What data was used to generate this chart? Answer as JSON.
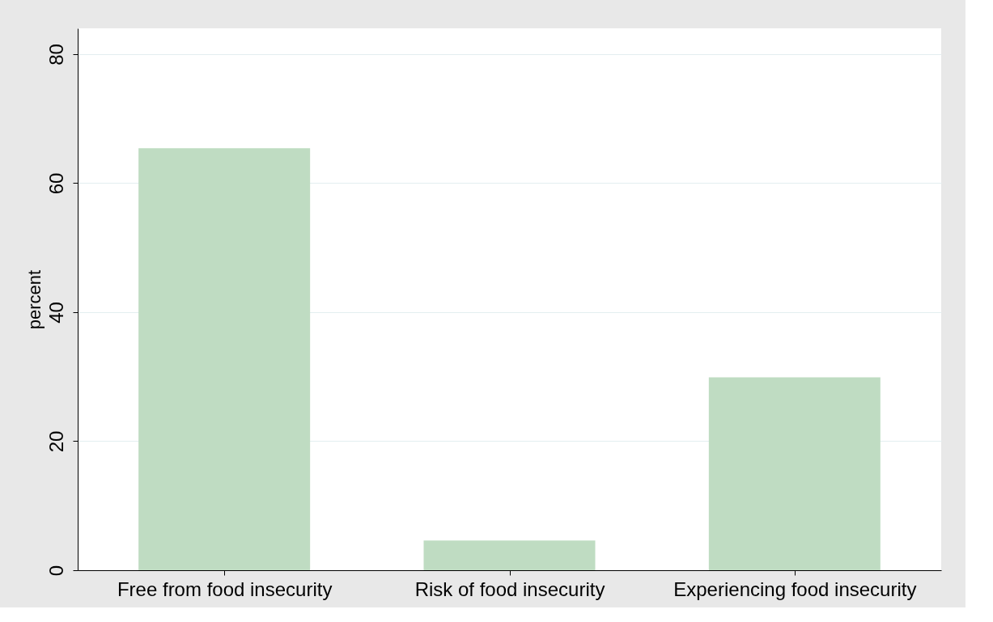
{
  "chart_data": {
    "type": "bar",
    "ylabel": "percent",
    "categories": [
      "Free from food insecurity",
      "Risk of food insecurity",
      "Experiencing food insecurity"
    ],
    "values": [
      65.4,
      4.6,
      29.9
    ],
    "color": "#bfdcc2",
    "ylim": [
      0,
      84
    ],
    "yticks": [
      0,
      20,
      40,
      60,
      80
    ],
    "grid": "y"
  }
}
